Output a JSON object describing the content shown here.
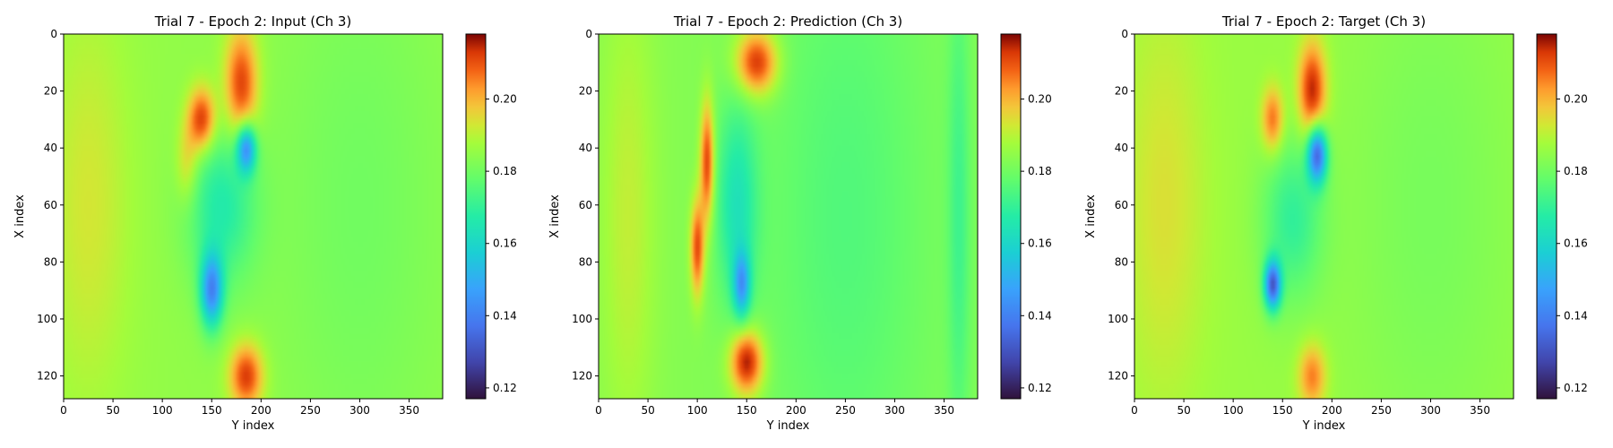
{
  "chart_data": [
    {
      "type": "heatmap",
      "title": "Trial 7 - Epoch 2: Input (Ch 3)",
      "xlabel": "Y index",
      "ylabel": "X index",
      "xlim": [
        0,
        384
      ],
      "ylim": [
        128,
        0
      ],
      "xticks": [
        0,
        50,
        100,
        150,
        200,
        250,
        300,
        350
      ],
      "yticks": [
        0,
        20,
        40,
        60,
        80,
        100,
        120
      ],
      "colormap": "turbo",
      "colorbar": {
        "min": 0.117,
        "max": 0.218,
        "ticks": [
          0.12,
          0.14,
          0.16,
          0.18,
          0.2
        ],
        "tick_labels": [
          "0.12",
          "0.14",
          "0.16",
          "0.18",
          "0.20"
        ]
      },
      "background": 0.185,
      "features": [
        {
          "x": 180,
          "y": 18,
          "sx": 12,
          "sy": 14,
          "v": 0.028
        },
        {
          "x": 140,
          "y": 30,
          "sx": 10,
          "sy": 8,
          "v": 0.03
        },
        {
          "x": 125,
          "y": 45,
          "sx": 8,
          "sy": 10,
          "v": 0.012
        },
        {
          "x": 185,
          "y": 40,
          "sx": 7,
          "sy": 6,
          "v": -0.04
        },
        {
          "x": 160,
          "y": 60,
          "sx": 25,
          "sy": 20,
          "v": -0.018
        },
        {
          "x": 150,
          "y": 90,
          "sx": 8,
          "sy": 9,
          "v": -0.04
        },
        {
          "x": 185,
          "y": 120,
          "sx": 12,
          "sy": 8,
          "v": 0.028
        },
        {
          "x": 25,
          "y": 60,
          "sx": 30,
          "sy": 50,
          "v": 0.008
        },
        {
          "x": 300,
          "y": 60,
          "sx": 60,
          "sy": 70,
          "v": -0.005
        }
      ]
    },
    {
      "type": "heatmap",
      "title": "Trial 7 - Epoch 2: Prediction (Ch 3)",
      "xlabel": "Y index",
      "ylabel": "X index",
      "xlim": [
        0,
        384
      ],
      "ylim": [
        128,
        0
      ],
      "xticks": [
        0,
        50,
        100,
        150,
        200,
        250,
        300,
        350
      ],
      "yticks": [
        0,
        20,
        40,
        60,
        80,
        100,
        120
      ],
      "colormap": "turbo",
      "colorbar": {
        "min": 0.117,
        "max": 0.218,
        "ticks": [
          0.12,
          0.14,
          0.16,
          0.18,
          0.2
        ],
        "tick_labels": [
          "0.12",
          "0.14",
          "0.16",
          "0.18",
          "0.20"
        ]
      },
      "background": 0.183,
      "features": [
        {
          "x": 160,
          "y": 10,
          "sx": 15,
          "sy": 8,
          "v": 0.032
        },
        {
          "x": 110,
          "y": 45,
          "sx": 5,
          "sy": 15,
          "v": 0.03
        },
        {
          "x": 100,
          "y": 75,
          "sx": 5,
          "sy": 12,
          "v": 0.028
        },
        {
          "x": 150,
          "y": 115,
          "sx": 12,
          "sy": 8,
          "v": 0.035
        },
        {
          "x": 140,
          "y": 60,
          "sx": 15,
          "sy": 25,
          "v": -0.018
        },
        {
          "x": 145,
          "y": 88,
          "sx": 6,
          "sy": 8,
          "v": -0.03
        },
        {
          "x": 365,
          "y": 64,
          "sx": 8,
          "sy": 60,
          "v": -0.01
        },
        {
          "x": 250,
          "y": 64,
          "sx": 60,
          "sy": 80,
          "v": -0.008
        },
        {
          "x": 30,
          "y": 64,
          "sx": 20,
          "sy": 60,
          "v": 0.008
        }
      ]
    },
    {
      "type": "heatmap",
      "title": "Trial 7 - Epoch 2: Target (Ch 3)",
      "xlabel": "Y index",
      "ylabel": "X index",
      "xlim": [
        0,
        384
      ],
      "ylim": [
        128,
        0
      ],
      "xticks": [
        0,
        50,
        100,
        150,
        200,
        250,
        300,
        350
      ],
      "yticks": [
        0,
        20,
        40,
        60,
        80,
        100,
        120
      ],
      "colormap": "turbo",
      "colorbar": {
        "min": 0.117,
        "max": 0.218,
        "ticks": [
          0.12,
          0.14,
          0.16,
          0.18,
          0.2
        ],
        "tick_labels": [
          "0.12",
          "0.14",
          "0.16",
          "0.18",
          "0.20"
        ]
      },
      "background": 0.186,
      "features": [
        {
          "x": 180,
          "y": 20,
          "sx": 10,
          "sy": 12,
          "v": 0.03
        },
        {
          "x": 140,
          "y": 30,
          "sx": 8,
          "sy": 8,
          "v": 0.022
        },
        {
          "x": 185,
          "y": 42,
          "sx": 7,
          "sy": 7,
          "v": -0.05
        },
        {
          "x": 160,
          "y": 65,
          "sx": 22,
          "sy": 20,
          "v": -0.016
        },
        {
          "x": 140,
          "y": 88,
          "sx": 6,
          "sy": 6,
          "v": -0.05
        },
        {
          "x": 180,
          "y": 120,
          "sx": 10,
          "sy": 8,
          "v": 0.02
        },
        {
          "x": 30,
          "y": 60,
          "sx": 30,
          "sy": 50,
          "v": 0.008
        },
        {
          "x": 300,
          "y": 60,
          "sx": 60,
          "sy": 70,
          "v": -0.005
        }
      ]
    }
  ]
}
